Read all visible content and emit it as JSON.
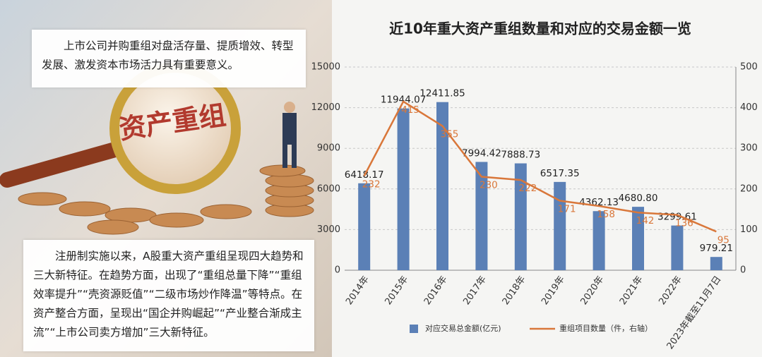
{
  "chart_data": {
    "type": "bar_line",
    "title": "近10年重大资产重组数量和对应的交易金额一览",
    "categories": [
      "2014年",
      "2015年",
      "2016年",
      "2017年",
      "2018年",
      "2019年",
      "2020年",
      "2021年",
      "2022年",
      "2023年截至11月7日"
    ],
    "series": [
      {
        "name": "对应交易总金额(亿元)",
        "type": "bar",
        "color": "#5b80b6",
        "values": [
          6418.17,
          11944.07,
          12411.85,
          7994.42,
          7888.73,
          6517.35,
          4362.13,
          4680.8,
          3299.61,
          979.21
        ],
        "value_labels": [
          "6418.17",
          "11944.07",
          "12411.85",
          "7994.42",
          "7888.73",
          "6517.35",
          "4362.13",
          "4680.80",
          "3299.61",
          "979.21"
        ]
      },
      {
        "name": "重组项目数量（件，右轴）",
        "type": "line",
        "axis": "y2",
        "color": "#d9773a",
        "values": [
          232,
          415,
          355,
          230,
          222,
          171,
          158,
          142,
          136,
          95
        ]
      }
    ],
    "ylim": [
      0,
      15000
    ],
    "yticks": [
      0,
      3000,
      6000,
      9000,
      12000,
      15000
    ],
    "y2lim": [
      0,
      500
    ],
    "y2ticks": [
      0,
      100,
      200,
      300,
      400,
      500
    ],
    "grid": true,
    "legend": "bottom"
  },
  "image_text": "资产重组",
  "intro": "上市公司并购重组对盘活存量、提质增效、转型发展、激发资本市场活力具有重要意义。",
  "summary": "注册制实施以来，A股重大资产重组呈现四大趋势和三大新特征。在趋势方面，出现了“重组总量下降”“重组效率提升”“壳资源贬值”“二级市场炒作降温”等特点。在资产整合方面，呈现出“国企并购崛起”“产业整合渐成主流”“上市公司卖方增加”三大新特征。"
}
